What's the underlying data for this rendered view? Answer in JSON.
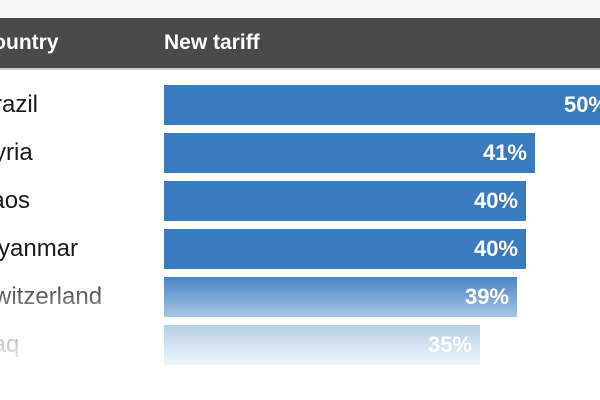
{
  "header": {
    "country_label": "Country",
    "tariff_label": "New tariff"
  },
  "colors": {
    "bar": "#3a7bbf",
    "header_bg": "#4a4a4a",
    "bar_label": "#ffffff"
  },
  "chart_data": {
    "type": "bar",
    "orientation": "horizontal",
    "categories": [
      "Brazil",
      "Syria",
      "Laos",
      "Myanmar",
      "Switzerland",
      "Iraq"
    ],
    "values": [
      50,
      41,
      40,
      40,
      39,
      35
    ],
    "value_labels": [
      "50%",
      "41%",
      "40%",
      "40%",
      "39%",
      "35%"
    ],
    "unit": "%",
    "xlim": [
      0,
      50
    ],
    "grid": false,
    "legend": "none"
  }
}
